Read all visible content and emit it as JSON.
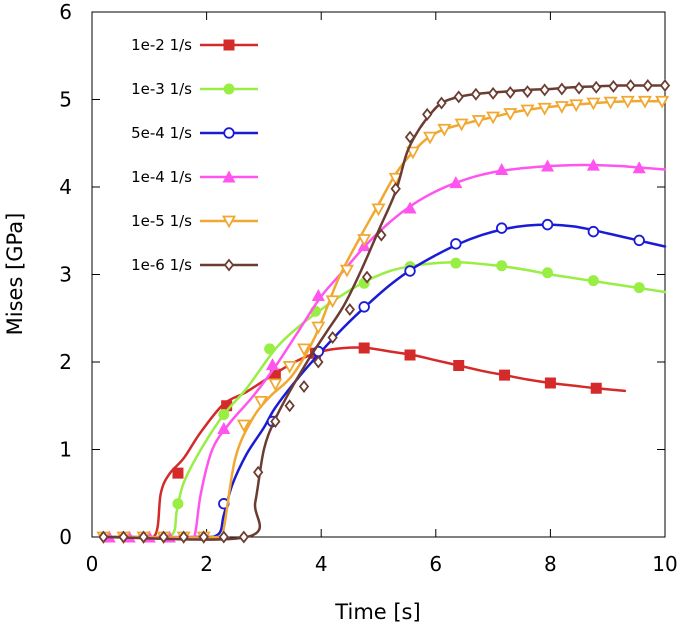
{
  "chart_data": {
    "type": "line",
    "title": "",
    "xlabel": "Time [s]",
    "ylabel": "Mises [GPa]",
    "xlim": [
      0,
      10
    ],
    "ylim": [
      0,
      6
    ],
    "xticks": [
      0,
      2,
      4,
      6,
      8,
      10
    ],
    "yticks": [
      0,
      1,
      2,
      3,
      4,
      5,
      6
    ],
    "grid": false,
    "legend_position": "top-left",
    "series": [
      {
        "name": "1e-2 1/s",
        "color": "#d42a2a",
        "marker": "square",
        "x": [
          0.2,
          0.7,
          1.1,
          1.2,
          1.35,
          1.6,
          1.9,
          2.3,
          2.7,
          3.2,
          3.6,
          4.0,
          4.4,
          4.8,
          5.2,
          5.6,
          6.0,
          6.4,
          6.8,
          7.2,
          7.6,
          8.0,
          8.4,
          8.8,
          9.3
        ],
        "y": [
          0.0,
          0.0,
          0.02,
          0.5,
          0.72,
          0.9,
          1.2,
          1.52,
          1.66,
          1.87,
          2.02,
          2.12,
          2.16,
          2.16,
          2.12,
          2.08,
          2.02,
          1.96,
          1.9,
          1.85,
          1.8,
          1.76,
          1.73,
          1.7,
          1.67
        ],
        "marker_x": [
          1.5,
          2.35,
          3.2,
          3.9,
          4.75,
          5.55,
          6.4,
          7.2,
          8.0,
          8.8
        ],
        "marker_y": [
          0.73,
          1.5,
          1.86,
          2.1,
          2.16,
          2.08,
          1.96,
          1.85,
          1.76,
          1.7
        ]
      },
      {
        "name": "1e-3 1/s",
        "color": "#99ee44",
        "marker": "circle",
        "x": [
          0.2,
          1.0,
          1.4,
          1.48,
          1.6,
          1.9,
          2.3,
          2.7,
          3.2,
          3.6,
          4.0,
          4.4,
          4.8,
          5.2,
          5.6,
          6.0,
          6.4,
          6.8,
          7.2,
          7.6,
          8.0,
          8.4,
          8.8,
          9.2,
          9.6,
          10.0
        ],
        "y": [
          0.0,
          0.0,
          0.03,
          0.3,
          0.62,
          1.0,
          1.4,
          1.7,
          2.15,
          2.4,
          2.6,
          2.78,
          2.93,
          3.04,
          3.1,
          3.13,
          3.14,
          3.12,
          3.09,
          3.05,
          3.0,
          2.96,
          2.92,
          2.88,
          2.84,
          2.8
        ],
        "marker_x": [
          1.5,
          2.3,
          3.1,
          3.9,
          4.75,
          5.55,
          6.35,
          7.15,
          7.95,
          8.75,
          9.55
        ],
        "marker_y": [
          0.38,
          1.4,
          2.15,
          2.58,
          2.9,
          3.09,
          3.13,
          3.1,
          3.02,
          2.93,
          2.85
        ]
      },
      {
        "name": "5e-4 1/s",
        "color": "#1b1bd6",
        "marker": "open-circle",
        "x": [
          0.2,
          1.8,
          2.2,
          2.3,
          2.45,
          2.7,
          3.0,
          3.2,
          3.6,
          4.0,
          4.4,
          4.8,
          5.2,
          5.6,
          6.0,
          6.4,
          6.8,
          7.2,
          7.6,
          8.0,
          8.4,
          8.8,
          9.2,
          9.6,
          10.0
        ],
        "y": [
          0.0,
          0.0,
          0.03,
          0.25,
          0.6,
          0.95,
          1.25,
          1.48,
          1.82,
          2.12,
          2.4,
          2.65,
          2.88,
          3.07,
          3.22,
          3.35,
          3.45,
          3.52,
          3.56,
          3.57,
          3.55,
          3.5,
          3.44,
          3.38,
          3.32
        ],
        "marker_x": [
          2.3,
          3.15,
          3.95,
          4.75,
          5.55,
          6.35,
          7.15,
          7.95,
          8.75,
          9.55
        ],
        "marker_y": [
          0.38,
          1.32,
          2.12,
          2.63,
          3.04,
          3.35,
          3.53,
          3.57,
          3.49,
          3.39
        ]
      },
      {
        "name": "1e-4 1/s",
        "color": "#ff55ee",
        "marker": "triangle",
        "x": [
          0.2,
          1.7,
          1.8,
          1.9,
          2.1,
          2.4,
          2.8,
          3.2,
          3.6,
          4.0,
          4.4,
          4.8,
          5.2,
          5.6,
          6.0,
          6.4,
          6.8,
          7.2,
          7.6,
          8.0,
          8.4,
          8.8,
          9.2,
          9.6,
          10.0
        ],
        "y": [
          0.0,
          0.0,
          0.04,
          0.5,
          1.0,
          1.3,
          1.6,
          1.95,
          2.35,
          2.75,
          3.05,
          3.35,
          3.6,
          3.8,
          3.95,
          4.06,
          4.14,
          4.19,
          4.22,
          4.24,
          4.25,
          4.25,
          4.24,
          4.22,
          4.2
        ],
        "marker_x": [
          0.3,
          0.65,
          1.0,
          1.35,
          2.3,
          3.15,
          3.95,
          4.75,
          5.55,
          6.35,
          7.15,
          7.95,
          8.75,
          9.55
        ],
        "marker_y": [
          0.0,
          0.0,
          0.0,
          0.0,
          1.24,
          1.97,
          2.76,
          3.33,
          3.76,
          4.05,
          4.2,
          4.24,
          4.25,
          4.22
        ]
      },
      {
        "name": "1e-5 1/s",
        "color": "#f0a830",
        "marker": "open-triangle-down",
        "x": [
          0.2,
          2.2,
          2.3,
          2.5,
          2.8,
          3.1,
          3.5,
          3.9,
          4.3,
          4.7,
          5.0,
          5.3,
          5.6,
          5.9,
          6.2,
          6.6,
          7.0,
          7.4,
          7.8,
          8.2,
          8.6,
          9.0,
          9.4,
          9.8,
          10.0
        ],
        "y": [
          0.0,
          0.0,
          0.1,
          0.9,
          1.35,
          1.6,
          1.85,
          2.3,
          2.95,
          3.45,
          3.8,
          4.15,
          4.4,
          4.58,
          4.67,
          4.74,
          4.8,
          4.86,
          4.9,
          4.93,
          4.95,
          4.97,
          4.98,
          4.98,
          4.98
        ],
        "marker_x": [
          0.2,
          0.55,
          0.9,
          1.25,
          1.6,
          1.95,
          2.65,
          2.95,
          3.2,
          3.45,
          3.7,
          3.95,
          4.2,
          4.45,
          4.75,
          5.0,
          5.3,
          5.6,
          5.9,
          6.15,
          6.45,
          6.75,
          7.0,
          7.3,
          7.6,
          7.9,
          8.2,
          8.45,
          8.75,
          9.05,
          9.35,
          9.65,
          9.95
        ],
        "marker_y": [
          0.0,
          0.0,
          0.0,
          0.0,
          0.0,
          0.0,
          1.28,
          1.55,
          1.75,
          1.95,
          2.15,
          2.4,
          2.7,
          3.05,
          3.4,
          3.75,
          4.1,
          4.4,
          4.57,
          4.66,
          4.72,
          4.76,
          4.8,
          4.84,
          4.88,
          4.9,
          4.92,
          4.94,
          4.96,
          4.97,
          4.98,
          4.98,
          4.98
        ]
      },
      {
        "name": "1e-6 1/s",
        "color": "#6b3c32",
        "marker": "open-diamond",
        "x": [
          0.2,
          2.7,
          2.85,
          3.0,
          3.2,
          3.5,
          3.8,
          4.1,
          4.4,
          4.7,
          5.0,
          5.3,
          5.5,
          5.7,
          5.9,
          6.1,
          6.4,
          6.8,
          7.2,
          7.6,
          8.0,
          8.4,
          8.8,
          9.2,
          9.6,
          10.0
        ],
        "y": [
          0.0,
          0.0,
          0.4,
          1.0,
          1.35,
          1.72,
          2.05,
          2.35,
          2.65,
          3.05,
          3.5,
          3.95,
          4.4,
          4.65,
          4.83,
          4.96,
          5.03,
          5.07,
          5.09,
          5.11,
          5.12,
          5.14,
          5.15,
          5.16,
          5.16,
          5.16
        ],
        "marker_x": [
          0.2,
          0.55,
          0.9,
          1.25,
          1.6,
          1.95,
          2.3,
          2.65,
          2.9,
          3.2,
          3.45,
          3.7,
          3.95,
          4.2,
          4.5,
          4.8,
          5.05,
          5.3,
          5.55,
          5.85,
          6.1,
          6.4,
          6.7,
          7.0,
          7.3,
          7.6,
          7.9,
          8.2,
          8.5,
          8.8,
          9.1,
          9.4,
          9.7,
          10.0
        ],
        "marker_y": [
          0.0,
          0.0,
          0.0,
          0.0,
          0.0,
          0.0,
          0.0,
          0.0,
          0.74,
          1.32,
          1.5,
          1.72,
          2.0,
          2.28,
          2.6,
          2.97,
          3.45,
          3.98,
          4.57,
          4.83,
          4.96,
          5.03,
          5.06,
          5.07,
          5.08,
          5.09,
          5.11,
          5.12,
          5.13,
          5.14,
          5.15,
          5.16,
          5.16,
          5.16
        ]
      }
    ]
  }
}
